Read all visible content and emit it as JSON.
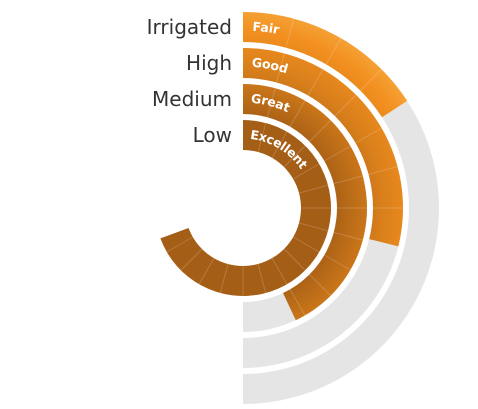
{
  "colors": {
    "track": "#e4e5e4",
    "fill": "#f28f1f",
    "label": "#333333",
    "value_label": "#ffffff"
  },
  "chart_data": {
    "type": "radial-bar",
    "subtitle": "",
    "categories": [
      "Irrigated",
      "High",
      "Medium",
      "Low"
    ],
    "value_labels": [
      "Fair",
      "Good",
      "Great",
      "Excellent"
    ],
    "values": [
      0.158,
      0.2885,
      0.43,
      0.694
    ],
    "scale": "fraction of a full ring; rings drawn as the right half of a circle, from the top clockwise",
    "fill": "radial gradient with darker shading toward the centre"
  }
}
